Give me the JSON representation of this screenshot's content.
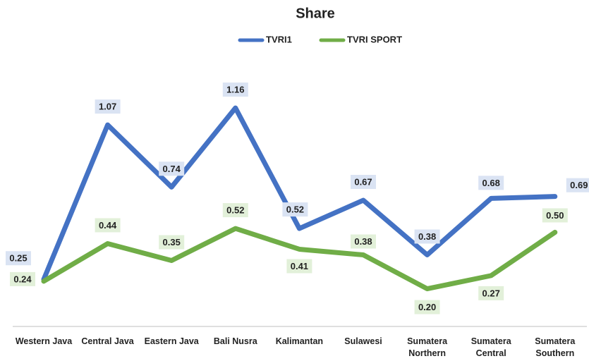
{
  "chart_data": {
    "type": "line",
    "title": "Share",
    "categories": [
      "Western Java",
      "Central Java",
      "Eastern Java",
      "Bali Nusra",
      "Kalimantan",
      "Sulawesi",
      "Sumatera Northern",
      "Sumatera Central",
      "Sumatera Southern"
    ],
    "series": [
      {
        "name": "TVRI1",
        "color": "#4472c4",
        "label_fill": "#dae3f3",
        "values": [
          0.25,
          1.07,
          0.74,
          1.16,
          0.52,
          0.67,
          0.38,
          0.68,
          0.69
        ],
        "value_labels": [
          "0.25",
          "1.07",
          "0.74",
          "1.16",
          "0.52",
          "0.67",
          "0.38",
          "0.68",
          "0.69"
        ]
      },
      {
        "name": "TVRI SPORT",
        "color": "#70ad47",
        "label_fill": "#e2f0d9",
        "values": [
          0.24,
          0.44,
          0.35,
          0.52,
          0.41,
          0.38,
          0.2,
          0.27,
          0.5
        ],
        "value_labels": [
          "0.24",
          "0.44",
          "0.35",
          "0.52",
          "0.41",
          "0.38",
          "0.20",
          "0.27",
          "0.50"
        ]
      }
    ],
    "ylim": [
      0,
      1.4
    ],
    "legend": "top"
  }
}
